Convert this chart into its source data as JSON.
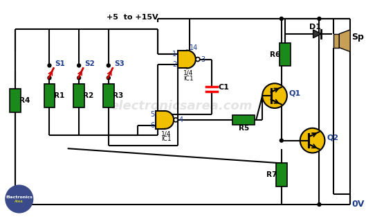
{
  "bg_color": "#ffffff",
  "vcc_label": "+5  to +15V",
  "gnd_label": "0V",
  "resistor_color": "#1a8a1a",
  "wire_color": "#000000",
  "switch_color": "#cc0000",
  "transistor_color": "#f0c000",
  "logic_gate_color": "#f0c000",
  "diode_color": "#444444",
  "speaker_color": "#c8a055",
  "logo_color": "#3a4a8a",
  "watermark": "electronicsarea.com",
  "label_color": "#1a3a8a"
}
